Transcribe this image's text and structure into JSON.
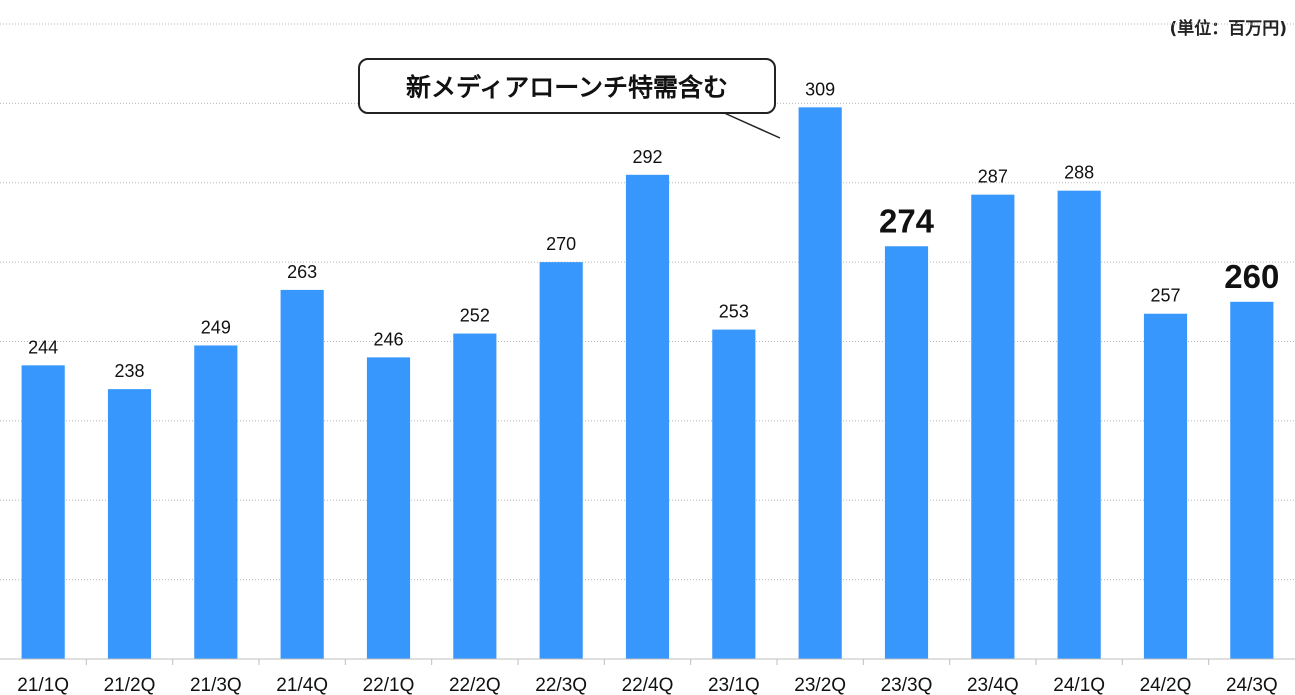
{
  "unit_label": "(単位：百万円)",
  "callout_text": "新メディアローンチ特需含む",
  "colors": {
    "bar": "#3797fc",
    "grid": "#b8b8b8",
    "axis": "#bfbfbf",
    "text": "#111111"
  },
  "chart_data": {
    "type": "bar",
    "categories": [
      "21/1Q",
      "21/2Q",
      "21/3Q",
      "21/4Q",
      "22/1Q",
      "22/2Q",
      "22/3Q",
      "22/4Q",
      "23/1Q",
      "23/2Q",
      "23/3Q",
      "23/4Q",
      "24/1Q",
      "24/2Q",
      "24/3Q"
    ],
    "values": [
      244,
      238,
      249,
      263,
      246,
      252,
      270,
      292,
      253,
      309,
      274,
      287,
      288,
      257,
      260
    ],
    "highlighted": [
      "23/3Q",
      "24/3Q"
    ],
    "ylim": [
      170,
      330
    ],
    "grid": true,
    "title": "",
    "xlabel": "",
    "ylabel": ""
  }
}
